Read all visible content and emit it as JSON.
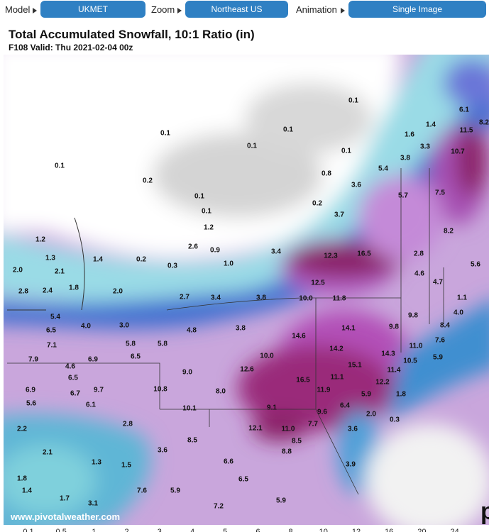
{
  "toolbar": {
    "controls": [
      {
        "label": "Model",
        "value": "UKMET"
      },
      {
        "label": "Zoom",
        "value": "Northeast US"
      },
      {
        "label": "Animation",
        "value": "Single Image"
      }
    ]
  },
  "header": {
    "title": "Total Accumulated Snowfall, 10:1 Ratio (in)",
    "subtitle": "F108 Valid: Thu 2021-02-04 00z"
  },
  "map": {
    "labels": [
      "0.1",
      "6.1",
      "8.2",
      "0.1",
      "0.1",
      "1.4",
      "11.5",
      "1.6",
      "0.1",
      "3.3",
      "0.1",
      "10.7",
      "3.8",
      "0.1",
      "5.4",
      "0.8",
      "0.2",
      "5.7",
      "7.5",
      "3.6",
      "0.1",
      "0.2",
      "3.7",
      "0.1",
      "8.2",
      "1.2",
      "1.2",
      "2.6",
      "0.9",
      "3.4",
      "12.3",
      "16.5",
      "2.8",
      "1.3",
      "1.4",
      "0.2",
      "1.0",
      "0.3",
      "5.6",
      "2.0",
      "2.1",
      "4.6",
      "12.5",
      "4.7",
      "1.8",
      "2.8",
      "2.4",
      "2.0",
      "2.7",
      "3.4",
      "3.8",
      "10.0",
      "11.8",
      "1.1",
      "4.0",
      "9.8",
      "5.4",
      "4.0",
      "3.0",
      "6.5",
      "8.4",
      "4.8",
      "3.8",
      "14.1",
      "9.8",
      "14.6",
      "7.1",
      "5.8",
      "5.8",
      "7.6",
      "14.2",
      "11.0",
      "7.9",
      "6.5",
      "6.9",
      "10.0",
      "14.3",
      "4.6",
      "5.9",
      "15.1",
      "10.5",
      "11.4",
      "6.5",
      "9.0",
      "12.6",
      "11.1",
      "16.5",
      "12.2",
      "6.9",
      "6.7",
      "9.7",
      "10.8",
      "8.0",
      "11.9",
      "5.9",
      "1.8",
      "5.6",
      "6.1",
      "10.1",
      "9.1",
      "6.4",
      "9.6",
      "2.0",
      "0.3",
      "2.8",
      "12.1",
      "7.7",
      "11.0",
      "3.6",
      "2.2",
      "8.5",
      "8.5",
      "2.1",
      "3.6",
      "8.8",
      "1.3",
      "1.5",
      "6.6",
      "3.9",
      "1.8",
      "6.5",
      "1.4",
      "7.6",
      "5.9",
      "1.7",
      "3.1",
      "5.9",
      "7.2"
    ],
    "watermark": "www.pivotalweather.com",
    "logo": "p"
  },
  "legend": {
    "ticks": [
      "0.1",
      "0.5",
      "1",
      "2",
      "3",
      "4",
      "5",
      "6",
      "8",
      "10",
      "12",
      "16",
      "20",
      "24"
    ]
  }
}
